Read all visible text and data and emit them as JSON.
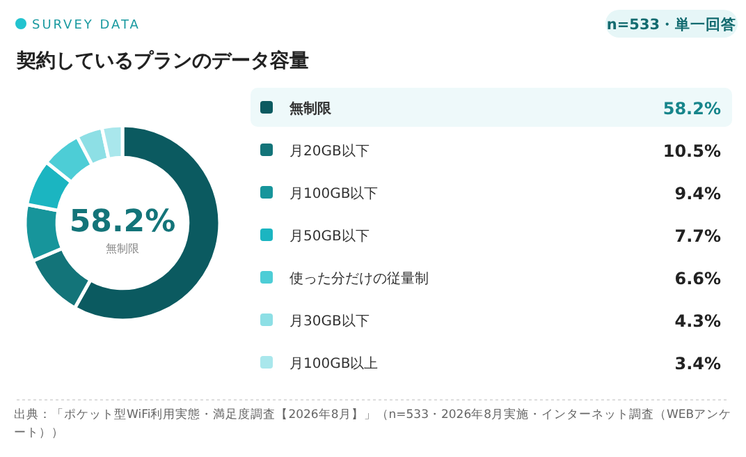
{
  "chart_data": {
    "type": "donut",
    "title": "契約しているプランのデータ容量",
    "annotations": [
      "SURVEY DATA",
      "n=533・単一回答",
      "出典：「ポケット型WiFi利用実態・満足度調査【2026年8月】」（n=533・2026年8月実施・インターネット調査（WEBアンケート））"
    ],
    "categories": [
      "無制限",
      "月20GB以下",
      "月100GB以下",
      "月50GB以下",
      "使った分だけの従量制",
      "月30GB以下",
      "月100GB以上"
    ],
    "values": [
      58.2,
      10.5,
      9.4,
      7.7,
      6.6,
      4.3,
      3.4
    ],
    "value_labels": [
      "58.2%",
      "10.5%",
      "9.4%",
      "7.7%",
      "6.6%",
      "4.3%",
      "3.4%"
    ],
    "colors": [
      "#0b5a60",
      "#137479",
      "#17959b",
      "#1bb5c1",
      "#4dcdd6",
      "#8ddfe5",
      "#a9e7ec"
    ],
    "legend": "right"
  }
}
